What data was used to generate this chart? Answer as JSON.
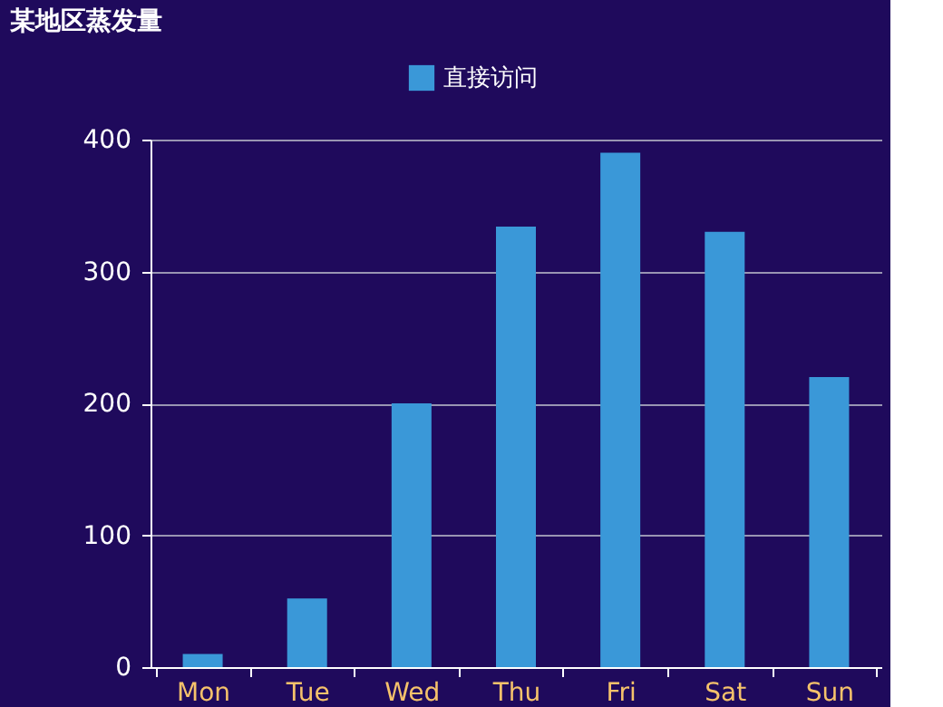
{
  "chart_data": {
    "type": "bar",
    "title": "某地区蒸发量",
    "categories": [
      "Mon",
      "Tue",
      "Wed",
      "Thu",
      "Fri",
      "Sat",
      "Sun"
    ],
    "series": [
      {
        "name": "直接访问",
        "color": "#3a98d8",
        "values": [
          10,
          52,
          200,
          334,
          390,
          330,
          220
        ]
      }
    ],
    "ylim": [
      0,
      400
    ],
    "yticks": [
      0,
      100,
      200,
      300,
      400
    ],
    "grid": "y",
    "legend": "top"
  }
}
